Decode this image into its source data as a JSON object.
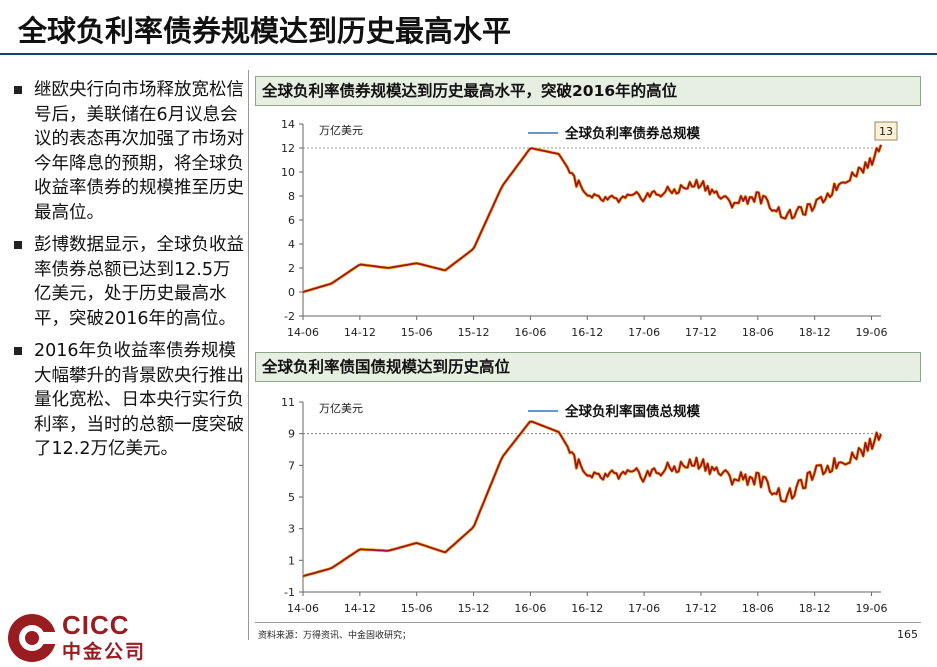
{
  "page": {
    "title": "全球负利率债券规模达到历史最高水平",
    "page_number": "165",
    "source": "资料来源：万得资讯、中金固收研究；",
    "logo": {
      "name": "CICC",
      "cn_name": "中金公司",
      "color": "#9b1c20"
    }
  },
  "bullets": [
    "继欧央行向市场释放宽松信号后，美联储在6月议息会议的表态再次加强了市场对今年降息的预期，将全球负收益率债券的规模推至历史最高位。",
    "彭博数据显示，全球负收益率债券总额已达到12.5万亿美元，处于历史最高水平，突破2016年的高位。",
    "2016年负收益率债券规模大幅攀升的背景欧央行推出量化宽松、日本央行实行负利率，当时的总额一度突破了12.2万亿美元。"
  ],
  "chart_data": [
    {
      "type": "line",
      "panel_title": "全球负利率债券规模达到历史最高水平，突破2016年的高位",
      "unit_label": "万亿美元",
      "series": [
        {
          "name": "全球负利率债券总规模",
          "color": "#a0141e"
        }
      ],
      "x_tick_labels": [
        "14-06",
        "14-12",
        "15-06",
        "15-12",
        "16-06",
        "16-12",
        "17-06",
        "17-12",
        "18-06",
        "18-12",
        "19-06"
      ],
      "ylim": [
        -2,
        14
      ],
      "y_ticks": [
        -2,
        0,
        2,
        4,
        6,
        8,
        10,
        12,
        14
      ],
      "reference_line": 12,
      "latest_label": "13",
      "x": [
        "14-06",
        "14-09",
        "14-12",
        "15-03",
        "15-06",
        "15-09",
        "15-12",
        "16-03",
        "16-06",
        "16-09",
        "16-12",
        "17-03",
        "17-06",
        "17-09",
        "17-12",
        "18-03",
        "18-06",
        "18-09",
        "18-12",
        "19-03",
        "19-06",
        "19-07"
      ],
      "values": [
        0,
        0.7,
        2.3,
        2.0,
        2.4,
        1.8,
        3.6,
        8.8,
        12.0,
        11.5,
        7.8,
        7.6,
        8.0,
        8.4,
        9.1,
        7.4,
        8.0,
        6.3,
        7.1,
        9.3,
        10.8,
        12.5
      ]
    },
    {
      "type": "line",
      "panel_title": "全球负利率债国债规模达到历史高位",
      "unit_label": "万亿美元",
      "series": [
        {
          "name": "全球负利率国债总规模",
          "color": "#a0141e"
        }
      ],
      "x_tick_labels": [
        "14-06",
        "14-12",
        "15-06",
        "15-12",
        "16-06",
        "16-12",
        "17-06",
        "17-12",
        "18-06",
        "18-12",
        "19-06"
      ],
      "ylim": [
        -1,
        11
      ],
      "y_ticks": [
        -1,
        1,
        3,
        5,
        7,
        9,
        11
      ],
      "reference_line": 9,
      "x": [
        "14-06",
        "14-09",
        "14-12",
        "15-03",
        "15-06",
        "15-09",
        "15-12",
        "16-03",
        "16-06",
        "16-09",
        "16-12",
        "17-03",
        "17-06",
        "17-09",
        "17-12",
        "18-03",
        "18-06",
        "18-09",
        "18-12",
        "19-03",
        "19-06",
        "19-07"
      ],
      "values": [
        0,
        0.5,
        1.7,
        1.6,
        2.1,
        1.5,
        3.1,
        7.5,
        9.8,
        9.1,
        6.1,
        6.3,
        6.4,
        6.8,
        7.2,
        6.2,
        6.2,
        4.9,
        6.5,
        7.3,
        8.3,
        9.2
      ]
    }
  ]
}
